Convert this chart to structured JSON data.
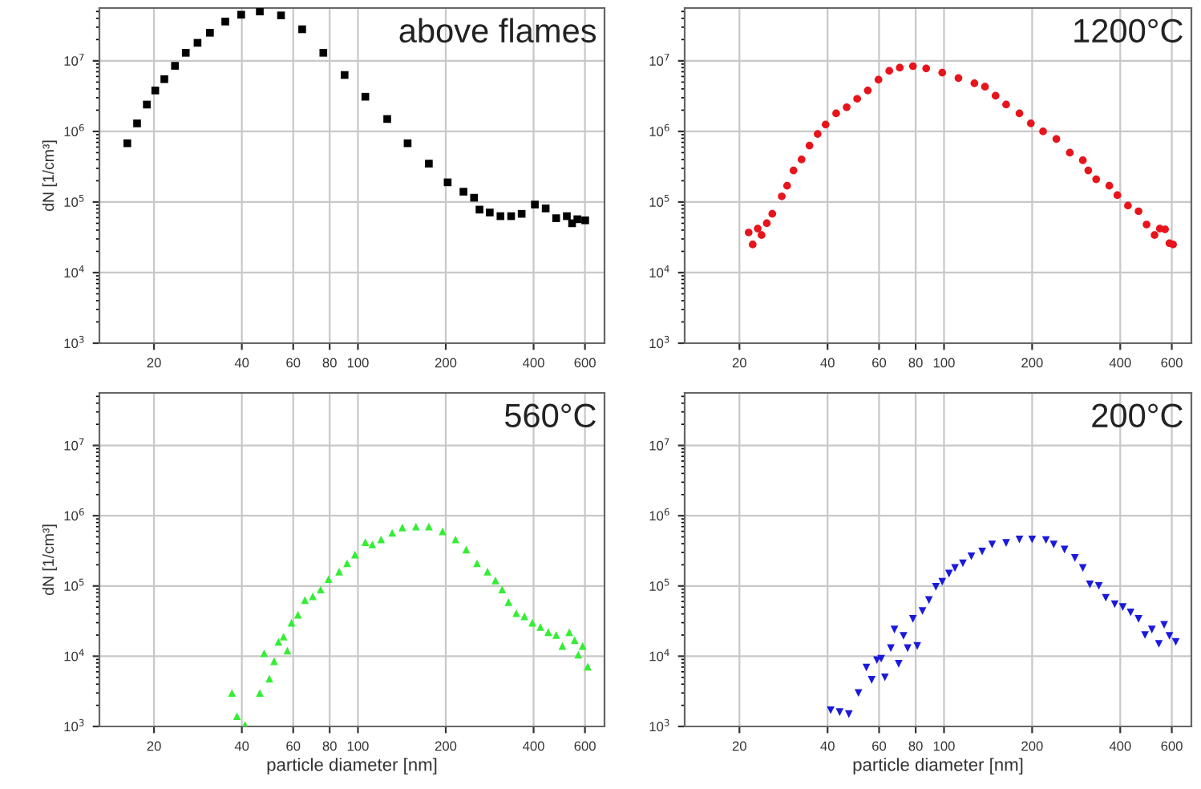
{
  "chart_data": [
    {
      "type": "scatter",
      "ylabel": "dN [1/cm³]",
      "annotations": [
        "above flames"
      ],
      "log": "xy",
      "grid": true,
      "marker": "square",
      "xlim": [
        13,
        700
      ],
      "ylim": [
        1000,
        56000000
      ],
      "xticks": [
        20,
        40,
        60,
        80,
        100,
        200,
        400,
        600
      ],
      "yticks": [
        {
          "value": 1000,
          "label": "10$^{3}$"
        },
        {
          "value": 10000,
          "label": "10$^{4}$"
        },
        {
          "value": 100000,
          "label": "10$^{5}$"
        },
        {
          "value": 1000000,
          "label": "10$^{6}$"
        },
        {
          "value": 10000000,
          "label": "10$^{7}$"
        }
      ],
      "series": [
        {
          "color": "#000000",
          "x": [
            16.2,
            17.5,
            18.9,
            20.2,
            21.7,
            23.6,
            25.7,
            28.2,
            31.1,
            35.1,
            39.8,
            46.1,
            54.5,
            64.4,
            76.1,
            90.0,
            106,
            126,
            148,
            175,
            203,
            230,
            250,
            261,
            283,
            308,
            335,
            364,
            404,
            440,
            478,
            520,
            542,
            565,
            601
          ],
          "values": [
            680000.0,
            1300000.0,
            2400000.0,
            3800000.0,
            5500000.0,
            8500000.0,
            13000000.0,
            18000000.0,
            25000000.0,
            36000000.0,
            45000000.0,
            50000000.0,
            44000000.0,
            28000000.0,
            13000000.0,
            6300000.0,
            3100000.0,
            1500000.0,
            680000.0,
            350000.0,
            190000.0,
            140000.0,
            115000.0,
            78000.0,
            71000.0,
            63000.0,
            63000.0,
            68000.0,
            92000.0,
            81000.0,
            59000.0,
            63000.0,
            50000.0,
            57000.0,
            55000.0
          ]
        }
      ]
    },
    {
      "type": "scatter",
      "annotations": [
        "1200°C"
      ],
      "log": "xy",
      "grid": true,
      "marker": "circle",
      "xlim": [
        13,
        700
      ],
      "ylim": [
        1000,
        56000000
      ],
      "xticks": [
        20,
        40,
        60,
        80,
        100,
        200,
        400,
        600
      ],
      "yticks": [
        {
          "value": 1000,
          "label": "10$^{3}$"
        },
        {
          "value": 10000,
          "label": "10$^{4}$"
        },
        {
          "value": 100000,
          "label": "10$^{5}$"
        },
        {
          "value": 1000000,
          "label": "10$^{6}$"
        },
        {
          "value": 10000000,
          "label": "10$^{7}$"
        }
      ],
      "series": [
        {
          "color": "#e8141c",
          "x": [
            21.5,
            22.2,
            23.1,
            23.8,
            24.8,
            25.9,
            27.9,
            29.1,
            30.6,
            32.6,
            34.7,
            37.0,
            39.4,
            42.8,
            46.5,
            50.5,
            54.9,
            59.7,
            65.0,
            70.6,
            78.3,
            86.9,
            98.6,
            112,
            127,
            138,
            150,
            163,
            181,
            198,
            218,
            242,
            269,
            298,
            311,
            331,
            367,
            391,
            425,
            462,
            492,
            524,
            546,
            569,
            589,
            606
          ],
          "values": [
            37000.0,
            25000.0,
            42000.0,
            34000.0,
            50000.0,
            68000.0,
            120000.0,
            170000.0,
            280000.0,
            400000.0,
            630000.0,
            920000.0,
            1250000.0,
            1800000.0,
            2200000.0,
            2900000.0,
            3800000.0,
            5400000.0,
            7200000.0,
            8000000.0,
            8400000.0,
            7800000.0,
            6800000.0,
            5700000.0,
            4800000.0,
            4300000.0,
            3200000.0,
            2400000.0,
            1800000.0,
            1300000.0,
            1000000.0,
            780000.0,
            500000.0,
            390000.0,
            280000.0,
            210000.0,
            170000.0,
            125000.0,
            89000.0,
            74000.0,
            48000.0,
            34000.0,
            42000.0,
            41000.0,
            26000.0,
            25000.0
          ]
        }
      ]
    },
    {
      "type": "scatter",
      "ylabel": "dN [1/cm³]",
      "xlabel": "particle diameter [nm]",
      "annotations": [
        "560°C"
      ],
      "log": "xy",
      "grid": true,
      "marker": "triangle",
      "xlim": [
        13,
        700
      ],
      "ylim": [
        1000,
        56000000
      ],
      "xticks": [
        20,
        40,
        60,
        80,
        100,
        200,
        400,
        600
      ],
      "yticks": [
        {
          "value": 1000,
          "label": "10$^{3}$"
        },
        {
          "value": 10000,
          "label": "10$^{4}$"
        },
        {
          "value": 100000,
          "label": "10$^{5}$"
        },
        {
          "value": 1000000,
          "label": "10$^{6}$"
        },
        {
          "value": 10000000,
          "label": "10$^{7}$"
        }
      ],
      "series": [
        {
          "color": "#33ee33",
          "x": [
            37.0,
            38.5,
            41.0,
            46.1,
            47.7,
            49.7,
            51.6,
            53.4,
            55.6,
            57.3,
            59.2,
            62.3,
            65.8,
            70.0,
            74.5,
            79.3,
            86.2,
            91.8,
            97.7,
            106,
            112,
            120,
            131,
            142,
            158,
            175,
            195,
            216,
            235,
            256,
            278,
            296,
            312,
            328,
            349,
            372,
            396,
            422,
            449,
            478,
            502,
            530,
            553,
            569,
            589,
            613
          ],
          "values": [
            3000.0,
            1400.0,
            1050.0,
            3000.0,
            11000.0,
            4800.0,
            8500.0,
            16000.0,
            19000.0,
            12000.0,
            30000.0,
            39000.0,
            63000.0,
            71000.0,
            89000.0,
            125000.0,
            160000.0,
            210000.0,
            280000.0,
            420000.0,
            390000.0,
            460000.0,
            570000.0,
            680000.0,
            700000.0,
            700000.0,
            600000.0,
            460000.0,
            330000.0,
            210000.0,
            160000.0,
            120000.0,
            89000.0,
            59000.0,
            41000.0,
            37000.0,
            30000.0,
            26000.0,
            22000.0,
            20000.0,
            14000.0,
            22000.0,
            17000.0,
            10500.0,
            14000.0,
            7100.0
          ]
        }
      ]
    },
    {
      "type": "scatter",
      "xlabel": "particle diameter [nm]",
      "annotations": [
        "200°C"
      ],
      "log": "xy",
      "grid": true,
      "marker": "triangle_down",
      "xlim": [
        13,
        700
      ],
      "ylim": [
        1000,
        56000000
      ],
      "xticks": [
        20,
        40,
        60,
        80,
        100,
        200,
        400,
        600
      ],
      "yticks": [
        {
          "value": 1000,
          "label": "10$^{3}$"
        },
        {
          "value": 10000,
          "label": "10$^{4}$"
        },
        {
          "value": 100000,
          "label": "10$^{5}$"
        },
        {
          "value": 1000000,
          "label": "10$^{6}$"
        },
        {
          "value": 10000000,
          "label": "10$^{7}$"
        }
      ],
      "series": [
        {
          "color": "#1a1adc",
          "x": [
            41.0,
            44.0,
            47.3,
            51.0,
            54.3,
            56.6,
            59.0,
            61.0,
            62.8,
            65.8,
            67.7,
            70.0,
            72.7,
            75.1,
            78.3,
            81.0,
            84.4,
            88.8,
            93.8,
            98.6,
            104,
            109,
            116,
            124,
            135,
            146,
            163,
            181,
            200,
            223,
            237,
            258,
            280,
            298,
            315,
            338,
            357,
            383,
            408,
            434,
            462,
            486,
            513,
            542,
            565,
            589,
            619
          ],
          "values": [
            1700.0,
            1600.0,
            1500.0,
            3000.0,
            6900.0,
            4600.0,
            8800.0,
            9200.0,
            5000.0,
            13000.0,
            24000.0,
            7800.0,
            19500.0,
            13000.0,
            34000.0,
            14000.0,
            44000.0,
            63000.0,
            97000.0,
            115000.0,
            150000.0,
            180000.0,
            210000.0,
            265000.0,
            310000.0,
            390000.0,
            410000.0,
            460000.0,
            460000.0,
            450000.0,
            390000.0,
            330000.0,
            250000.0,
            180000.0,
            105000.0,
            100000.0,
            68000.0,
            55000.0,
            50000.0,
            42000.0,
            34000.0,
            20000.0,
            24000.0,
            15000.0,
            28000.0,
            19500.0,
            16000.0
          ]
        }
      ]
    }
  ]
}
